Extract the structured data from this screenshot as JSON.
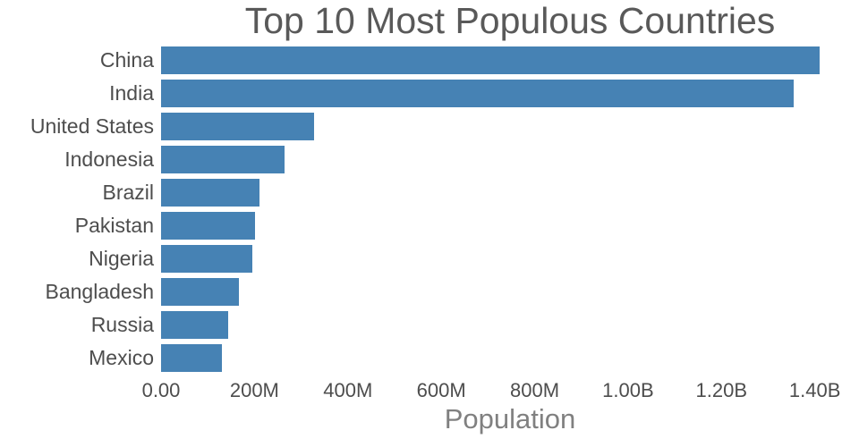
{
  "chart_data": {
    "type": "bar",
    "orientation": "horizontal",
    "title": "Top 10 Most Populous Countries",
    "xlabel": "Population",
    "ylabel": "",
    "unit": "millions",
    "categories": [
      "China",
      "India",
      "United States",
      "Indonesia",
      "Brazil",
      "Pakistan",
      "Nigeria",
      "Bangladesh",
      "Russia",
      "Mexico"
    ],
    "values": [
      1410,
      1354,
      327,
      264,
      211,
      201,
      196,
      166,
      144,
      130
    ],
    "xlim": [
      0,
      1460
    ],
    "xticks": [
      {
        "value": 0,
        "label": "0.00"
      },
      {
        "value": 200,
        "label": "200M"
      },
      {
        "value": 400,
        "label": "400M"
      },
      {
        "value": 600,
        "label": "600M"
      },
      {
        "value": 800,
        "label": "800M"
      },
      {
        "value": 1000,
        "label": "1.00B"
      },
      {
        "value": 1200,
        "label": "1.20B"
      },
      {
        "value": 1400,
        "label": "1.40B"
      }
    ],
    "bar_color": "#4682b4",
    "grid": false,
    "legend": null
  }
}
